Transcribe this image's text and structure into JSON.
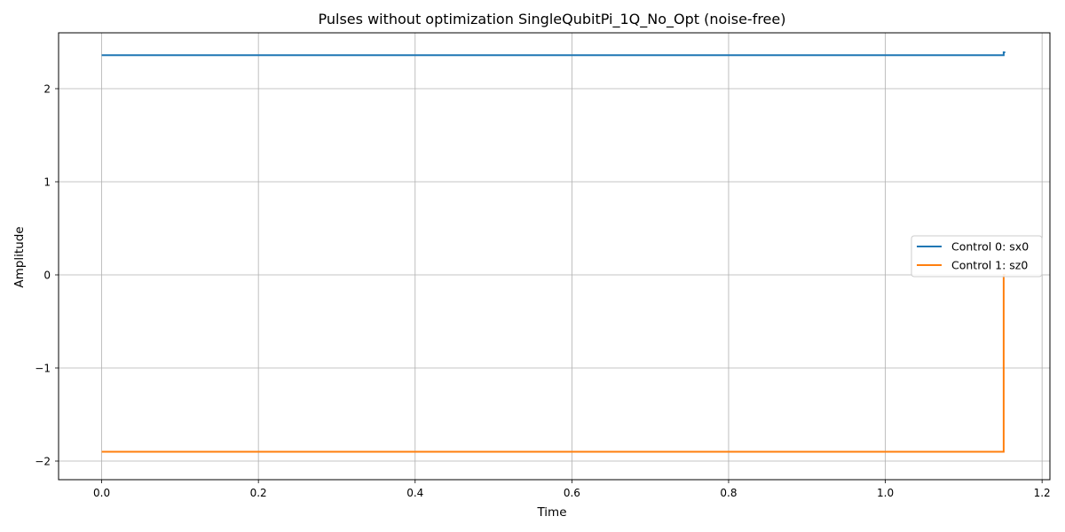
{
  "chart_data": {
    "type": "line",
    "title": "Pulses without optimization SingleQubitPi_1Q_No_Opt (noise-free)",
    "xlabel": "Time",
    "ylabel": "Amplitude",
    "xlim": [
      -0.055,
      1.21
    ],
    "ylim": [
      -2.2,
      2.6
    ],
    "xticks": [
      0.0,
      0.2,
      0.4,
      0.6,
      0.8,
      1.0,
      1.2
    ],
    "xtick_labels": [
      "0.0",
      "0.2",
      "0.4",
      "0.6",
      "0.8",
      "1.0",
      "1.2"
    ],
    "yticks": [
      -2,
      -1,
      0,
      1,
      2
    ],
    "ytick_labels": [
      "−2",
      "−1",
      "0",
      "1",
      "2"
    ],
    "grid": true,
    "legend_position": "center-right",
    "series": [
      {
        "name": "Control 0: sx0",
        "color": "#1f77b4",
        "points": [
          [
            0.0,
            2.36
          ],
          [
            1.151,
            2.36
          ],
          [
            1.151,
            2.39
          ],
          [
            1.153,
            2.39
          ]
        ]
      },
      {
        "name": "Control 1: sz0",
        "color": "#ff7f0e",
        "points": [
          [
            0.0,
            -1.9
          ],
          [
            1.151,
            -1.9
          ],
          [
            1.151,
            0.0
          ],
          [
            1.153,
            0.0
          ]
        ]
      }
    ]
  }
}
